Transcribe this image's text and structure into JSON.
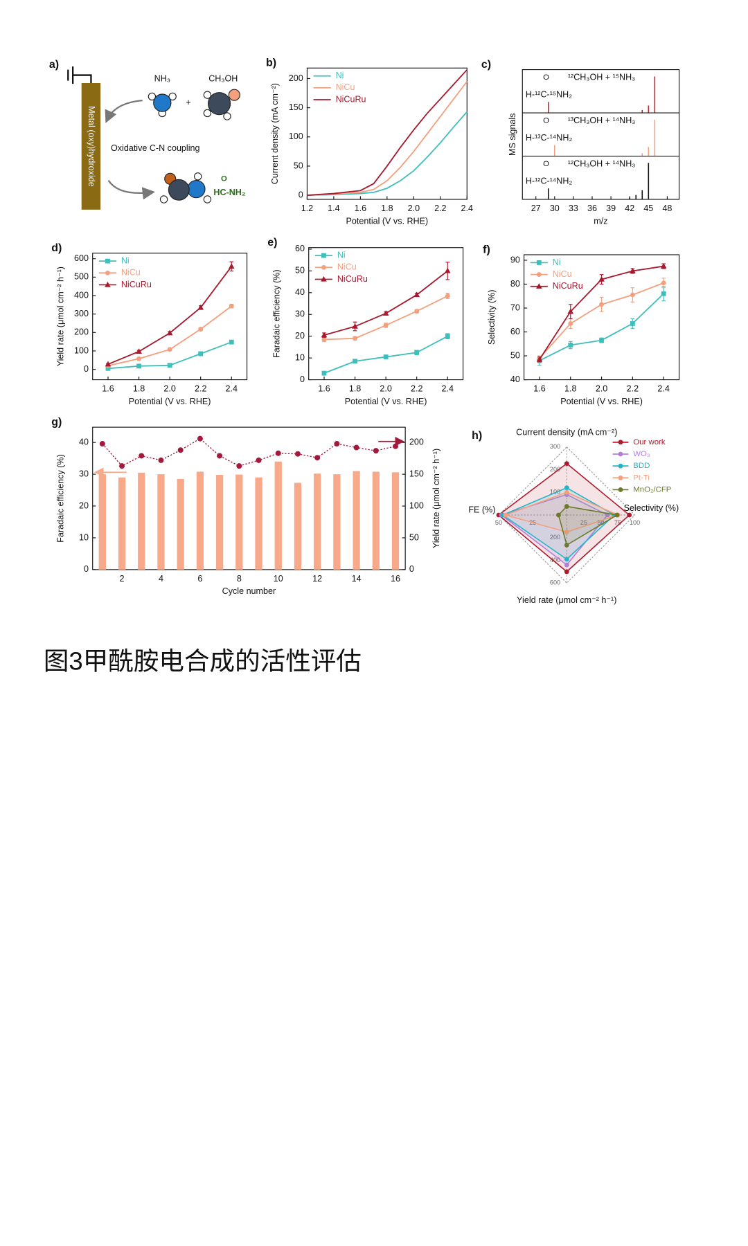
{
  "chart_data": [
    {
      "type": "line",
      "panel_label": "b)",
      "xlabel": "Potential (V vs. RHE)",
      "ylabel": "Current density (mA cm⁻²)",
      "x": [
        1.2,
        1.4,
        1.6,
        1.7,
        1.8,
        1.9,
        2.0,
        2.1,
        2.2,
        2.3,
        2.4
      ],
      "series": [
        {
          "name": "Ni",
          "color": "#3fbfbc",
          "values": [
            0,
            1,
            3,
            5,
            12,
            25,
            42,
            65,
            90,
            117,
            143
          ]
        },
        {
          "name": "NiCu",
          "color": "#f4a07e",
          "values": [
            0,
            2,
            5,
            10,
            25,
            48,
            75,
            105,
            135,
            165,
            195
          ]
        },
        {
          "name": "NiCuRu",
          "color": "#a8192e",
          "values": [
            0,
            3,
            8,
            20,
            50,
            82,
            112,
            140,
            165,
            190,
            215
          ]
        }
      ],
      "xlim": [
        1.2,
        2.4
      ],
      "ylim": [
        -7,
        218
      ],
      "xticks": [
        1.2,
        1.4,
        1.6,
        1.8,
        {
          "value": 2,
          "label": "2.0"
        },
        2.2,
        2.4
      ],
      "yticks": [
        0,
        50,
        100,
        150,
        200
      ],
      "legend": "upper left"
    },
    {
      "type": "stem",
      "panel_label": "c)",
      "xlabel": "m/z",
      "ylabel": "MS signals",
      "xlim": [
        24.85,
        49.9
      ],
      "ylim": [
        0,
        110
      ],
      "xticks": [
        27,
        30,
        33,
        36,
        39,
        42,
        45,
        48
      ],
      "series": [
        {
          "name": "¹²CH₃OH + ¹⁵NH₃",
          "color": "#c0282e",
          "structure": "H-¹²C-¹⁵NH₂",
          "structure_o": "O",
          "x": [
            29,
            44,
            45,
            46
          ],
          "values": [
            30,
            8,
            20,
            100
          ]
        },
        {
          "name": "¹³CH₃OH + ¹⁴NH₃",
          "color": "#f4a07e",
          "structure": "H-¹³C-¹⁴NH₂",
          "structure_o": "O",
          "x": [
            30,
            44,
            45,
            46
          ],
          "values": [
            30,
            8,
            25,
            100
          ]
        },
        {
          "name": "¹²CH₃OH + ¹⁴NH₃",
          "color": "#111111",
          "structure": "H-¹²C-¹⁴NH₂",
          "structure_o": "O",
          "x": [
            29,
            42,
            43,
            44,
            45
          ],
          "values": [
            30,
            6,
            12,
            25,
            100
          ]
        }
      ]
    },
    {
      "type": "line",
      "panel_label": "d)",
      "xlabel": "Potential  (V vs. RHE)",
      "ylabel": "Yield rate (μmol cm⁻² h⁻¹)",
      "x": [
        1.6,
        1.8,
        2.0,
        2.2,
        2.4
      ],
      "series": [
        {
          "name": "Ni",
          "color": "#3fbfbc",
          "marker": "square",
          "values": [
            5,
            18,
            22,
            85,
            148
          ],
          "errors": [
            3,
            5,
            5,
            6,
            10
          ]
        },
        {
          "name": "NiCu",
          "color": "#f4a07e",
          "marker": "circle",
          "values": [
            20,
            58,
            108,
            218,
            343
          ],
          "errors": [
            4,
            5,
            6,
            8,
            10
          ]
        },
        {
          "name": "NiCuRu",
          "color": "#a8192e",
          "marker": "triangle",
          "values": [
            28,
            97,
            197,
            335,
            558
          ],
          "errors": [
            4,
            6,
            8,
            10,
            25
          ]
        }
      ],
      "xlim": [
        1.5,
        2.5
      ],
      "ylim": [
        -56,
        630
      ],
      "xticks": [
        1.6,
        1.8,
        {
          "value": 2,
          "label": "2.0"
        },
        2.2,
        2.4
      ],
      "yticks": [
        0,
        100,
        200,
        300,
        400,
        500,
        600
      ],
      "legend": "upper left"
    },
    {
      "type": "line",
      "panel_label": "e)",
      "xlabel": "Potential (V vs. RHE)",
      "ylabel": "Faradaic efficiency (%)",
      "x": [
        1.6,
        1.8,
        2.0,
        2.2,
        2.4
      ],
      "series": [
        {
          "name": "Ni",
          "color": "#3fbfbc",
          "marker": "square",
          "values": [
            3,
            8.5,
            10.5,
            12.5,
            20
          ],
          "errors": [
            0.8,
            0.5,
            0.6,
            1,
            1.2
          ]
        },
        {
          "name": "NiCu",
          "color": "#f4a07e",
          "marker": "circle",
          "values": [
            18.5,
            19,
            25,
            31.5,
            38.5
          ],
          "errors": [
            1,
            0.8,
            1,
            0.8,
            1.2
          ]
        },
        {
          "name": "NiCuRu",
          "color": "#a8192e",
          "marker": "triangle",
          "values": [
            20.5,
            24.5,
            30.5,
            39,
            50
          ],
          "errors": [
            1,
            2,
            0.8,
            0.8,
            4
          ]
        }
      ],
      "xlim": [
        1.5,
        2.5
      ],
      "ylim": [
        0,
        60.7
      ],
      "xticks": [
        1.6,
        1.8,
        {
          "value": 2,
          "label": "2.0"
        },
        2.2,
        2.4
      ],
      "yticks": [
        0,
        10,
        20,
        30,
        40,
        50,
        60
      ],
      "legend": "upper left"
    },
    {
      "type": "line",
      "panel_label": "f)",
      "xlabel": "Potential (V vs. RHE)",
      "ylabel": "Selectivity (%)",
      "x": [
        1.6,
        1.8,
        2.0,
        2.2,
        2.4
      ],
      "series": [
        {
          "name": "Ni",
          "color": "#3fbfbc",
          "marker": "square",
          "values": [
            48,
            54.5,
            56.5,
            63.5,
            76
          ],
          "errors": [
            2,
            1.5,
            1,
            2,
            3
          ]
        },
        {
          "name": "NiCu",
          "color": "#f4a07e",
          "marker": "circle",
          "values": [
            49,
            63.5,
            71.5,
            75.5,
            80.5
          ],
          "errors": [
            1,
            2,
            3,
            3,
            2
          ]
        },
        {
          "name": "NiCuRu",
          "color": "#a8192e",
          "marker": "triangle",
          "values": [
            48.5,
            68.5,
            82,
            85.5,
            87.5
          ],
          "errors": [
            1,
            3,
            2,
            1,
            1
          ]
        }
      ],
      "xlim": [
        1.5,
        2.5
      ],
      "ylim": [
        40,
        92.3
      ],
      "xticks": [
        1.6,
        1.8,
        {
          "value": 2,
          "label": "2.0"
        },
        2.2,
        2.4
      ],
      "yticks": [
        40,
        50,
        60,
        70,
        80,
        90
      ],
      "legend": "upper left"
    },
    {
      "type": "combo",
      "panel_label": "g)",
      "xlabel": "Cycle number",
      "ylabel": "Faradaic efficiency (%)",
      "y2label": "Yield rate (μmol cm⁻² h⁻¹)",
      "x": [
        1,
        2,
        3,
        4,
        5,
        6,
        7,
        8,
        9,
        10,
        11,
        12,
        13,
        14,
        15,
        16
      ],
      "series": [
        {
          "kind": "bar",
          "color": "#f8a98a",
          "values": [
            30,
            29,
            30.5,
            30,
            28.5,
            30.8,
            29.8,
            29.9,
            29,
            34,
            27.3,
            30.2,
            30,
            31,
            30.8,
            30.6
          ]
        },
        {
          "kind": "line",
          "axis": "y2",
          "color": "#a3193c",
          "values": [
            198,
            163,
            179,
            172,
            188,
            206,
            179,
            163,
            172,
            183,
            182,
            176,
            198,
            192,
            187,
            194
          ]
        }
      ],
      "xlim": [
        0.5,
        16.5
      ],
      "ylim": [
        0,
        44.8
      ],
      "y2lim": [
        0,
        224
      ],
      "xticks": [
        2,
        4,
        6,
        8,
        10,
        12,
        14,
        16
      ],
      "yticks": [
        0,
        10,
        20,
        30,
        40
      ],
      "y2ticks": [
        0,
        50,
        100,
        150,
        200
      ]
    },
    {
      "type": "radar",
      "panel_label": "h)",
      "axes": [
        {
          "name": "Current density (mA cm⁻²)",
          "lim": [
            0,
            300
          ],
          "ticks": [
            100,
            200,
            300
          ]
        },
        {
          "name": "Selectivity (%)",
          "lim": [
            0,
            100
          ],
          "ticks": [
            25,
            50,
            75,
            100
          ]
        },
        {
          "name": "Yield rate (μmol cm⁻² h⁻¹)",
          "lim": [
            0,
            600
          ],
          "ticks": [
            200,
            400,
            600
          ]
        },
        {
          "name": "FE (%)",
          "lim": [
            0,
            50
          ],
          "ticks": [
            25,
            50
          ]
        }
      ],
      "series": [
        {
          "name": "Our work",
          "color": "#b2182b",
          "values": [
            227,
            92,
            500,
            50
          ]
        },
        {
          "name": "WO₃",
          "color": "#b07fdc",
          "values": [
            90,
            60,
            440,
            48
          ]
        },
        {
          "name": "BDD",
          "color": "#22b5c8",
          "values": [
            120,
            70,
            390,
            47
          ]
        },
        {
          "name": "Pt-Ti",
          "color": "#f4a07e",
          "values": [
            100,
            75,
            150,
            45
          ]
        },
        {
          "name": "MnO₂/CFP",
          "color": "#6b7a2a",
          "values": [
            38,
            74,
            265,
            6
          ]
        }
      ],
      "legend": "upper right"
    }
  ],
  "diagram_a": {
    "label": "a)",
    "electrode": "Metal (oxy)hydroxide",
    "reactant_1": "NH₃",
    "reactant_2": "CH₃OH",
    "plus": "+",
    "process": "Oxidative C-N coupling",
    "product_o": "O",
    "product": "HC-NH₂"
  },
  "caption": "图3甲酰胺电合成的活性评估"
}
